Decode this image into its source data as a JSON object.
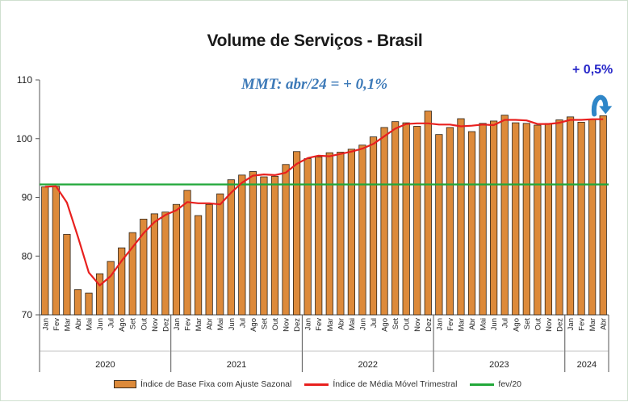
{
  "chart_data": {
    "type": "bar",
    "title": "Volume de Serviços - Brasil",
    "annotation_mmt": "MMT: abr/24 = + 0,1%",
    "annotation_delta": "+ 0,5%",
    "ylim": [
      70,
      110
    ],
    "yticks": [
      "70",
      "80",
      "90",
      "100",
      "110"
    ],
    "months": [
      "Jan",
      "Fev",
      "Mar",
      "Abr",
      "Mai",
      "Jun",
      "Jul",
      "Ago",
      "Set",
      "Out",
      "Nov",
      "Dez",
      "Jan",
      "Fev",
      "Mar",
      "Abr",
      "Mai",
      "Jun",
      "Jul",
      "Ago",
      "Set",
      "Out",
      "Nov",
      "Dez",
      "Jan",
      "Fev",
      "Mar",
      "Abr",
      "Mai",
      "Jun",
      "Jul",
      "Ago",
      "Set",
      "Out",
      "Nov",
      "Dez",
      "Jan",
      "Fev",
      "Mar",
      "Abr",
      "Mai",
      "Jun",
      "Jul",
      "Ago",
      "Set",
      "Out",
      "Nov",
      "Dez",
      "Jan",
      "Fev",
      "Mar",
      "Abr"
    ],
    "years": [
      {
        "label": "2020",
        "count": 12
      },
      {
        "label": "2021",
        "count": 12
      },
      {
        "label": "2022",
        "count": 12
      },
      {
        "label": "2023",
        "count": 12
      },
      {
        "label": "2024",
        "count": 4
      }
    ],
    "series": [
      {
        "name": "Índice de Base Fixa com Ajuste Sazonal",
        "kind": "bar",
        "color": "#dd8a3a",
        "values": [
          91.8,
          91.9,
          83.7,
          74.3,
          73.7,
          77.0,
          79.1,
          81.4,
          84.0,
          86.3,
          87.2,
          87.5,
          88.8,
          91.2,
          86.9,
          88.8,
          90.6,
          93.0,
          93.8,
          94.4,
          93.5,
          93.6,
          95.6,
          97.8,
          96.6,
          96.9,
          97.6,
          97.7,
          98.2,
          98.9,
          100.3,
          101.9,
          102.9,
          102.7,
          102.1,
          104.7,
          100.7,
          101.9,
          103.4,
          101.2,
          102.6,
          103.0,
          104.0,
          102.7,
          102.6,
          102.3,
          102.6,
          103.2,
          103.7,
          102.8,
          103.3,
          103.9
        ]
      },
      {
        "name": "Índice de Média Móvel Trimestral",
        "kind": "line",
        "color": "#e8201e",
        "values": [
          91.8,
          91.9,
          89.1,
          83.3,
          77.2,
          75.0,
          76.6,
          79.2,
          81.5,
          83.9,
          85.8,
          87.0,
          87.8,
          89.2,
          89.0,
          89.0,
          88.8,
          90.8,
          92.5,
          93.7,
          93.9,
          93.8,
          94.2,
          95.7,
          96.7,
          97.1,
          97.0,
          97.4,
          97.8,
          98.3,
          99.1,
          100.4,
          101.7,
          102.5,
          102.6,
          102.6,
          102.4,
          102.4,
          102.1,
          102.2,
          102.4,
          102.3,
          103.2,
          103.2,
          103.1,
          102.5,
          102.5,
          102.7,
          103.2,
          103.2,
          103.3,
          103.3
        ]
      },
      {
        "name": "fev/20",
        "kind": "reference",
        "color": "#22a83a",
        "value": 92.2
      }
    ]
  }
}
